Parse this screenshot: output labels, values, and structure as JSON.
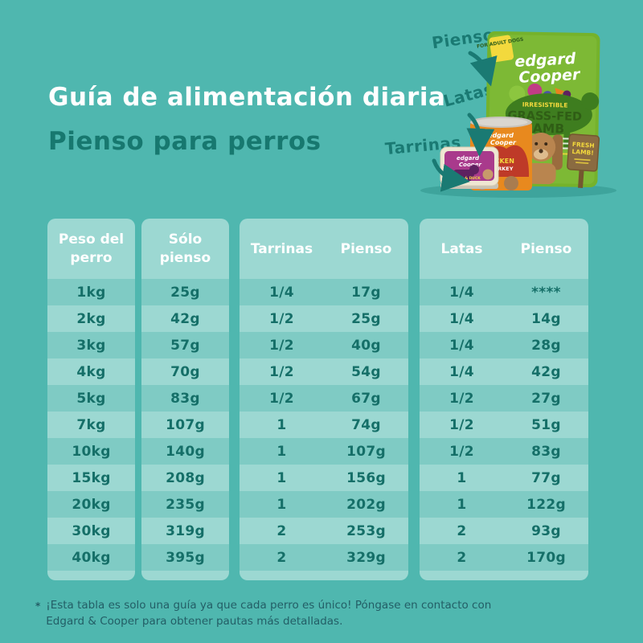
{
  "page": {
    "title": "Guía de alimentación diaria",
    "subtitle": "Pienso para perros"
  },
  "colors": {
    "background": "#4FB7AF",
    "panel": "#9CD8D2",
    "row_stripe": "#7FCBC4",
    "header_text": "#FFFFFF",
    "cell_text": "#156F68",
    "title_text": "#FFFFFF",
    "subtitle_text": "#17786F",
    "label_text": "#1A7A73",
    "bag_green": "#75B22B",
    "can_orange": "#E8891E",
    "tray_magenta": "#A93A8C",
    "footnote_text": "#235E66"
  },
  "product_labels": {
    "pienso": "Pienso",
    "latas": "Latas",
    "tarrinas": "Tarrinas"
  },
  "products": {
    "bag": {
      "brand_line1": "edgard",
      "brand_line2": "Cooper",
      "badge": "FOR ADULT DOGS",
      "tagline": "IRRESISTIBLE",
      "title_line1": "GRASS-FED",
      "title_line2": "LAMB",
      "sign_line1": "FRESH",
      "sign_line2": "LAMB!"
    },
    "can": {
      "brand_line1": "edgard",
      "brand_line2": "Cooper",
      "flavor_line1": "CHICKEN",
      "flavor_line2": "& TURKEY"
    },
    "tray": {
      "brand_line1": "edgard",
      "brand_line2": "Cooper",
      "flavor": "LAMB & DUCK"
    }
  },
  "table": {
    "headers": {
      "weight_line1": "Peso del",
      "weight_line2": "perro",
      "kibble_line1": "Sólo",
      "kibble_line2": "pienso",
      "trays": "Tarrinas",
      "trays_kibble": "Pienso",
      "cans": "Latas",
      "cans_kibble": "Pienso"
    },
    "rows": [
      {
        "weight": "1kg",
        "kibble_only": "25g",
        "trays": "1/4",
        "trays_kibble": "17g",
        "cans": "1/4",
        "cans_kibble": "****"
      },
      {
        "weight": "2kg",
        "kibble_only": "42g",
        "trays": "1/2",
        "trays_kibble": "25g",
        "cans": "1/4",
        "cans_kibble": "14g"
      },
      {
        "weight": "3kg",
        "kibble_only": "57g",
        "trays": "1/2",
        "trays_kibble": "40g",
        "cans": "1/4",
        "cans_kibble": "28g"
      },
      {
        "weight": "4kg",
        "kibble_only": "70g",
        "trays": "1/2",
        "trays_kibble": "54g",
        "cans": "1/4",
        "cans_kibble": "42g"
      },
      {
        "weight": "5kg",
        "kibble_only": "83g",
        "trays": "1/2",
        "trays_kibble": "67g",
        "cans": "1/2",
        "cans_kibble": "27g"
      },
      {
        "weight": "7kg",
        "kibble_only": "107g",
        "trays": "1",
        "trays_kibble": "74g",
        "cans": "1/2",
        "cans_kibble": "51g"
      },
      {
        "weight": "10kg",
        "kibble_only": "140g",
        "trays": "1",
        "trays_kibble": "107g",
        "cans": "1/2",
        "cans_kibble": "83g"
      },
      {
        "weight": "15kg",
        "kibble_only": "208g",
        "trays": "1",
        "trays_kibble": "156g",
        "cans": "1",
        "cans_kibble": "77g"
      },
      {
        "weight": "20kg",
        "kibble_only": "235g",
        "trays": "1",
        "trays_kibble": "202g",
        "cans": "1",
        "cans_kibble": "122g"
      },
      {
        "weight": "30kg",
        "kibble_only": "319g",
        "trays": "2",
        "trays_kibble": "253g",
        "cans": "2",
        "cans_kibble": "93g"
      },
      {
        "weight": "40kg",
        "kibble_only": "395g",
        "trays": "2",
        "trays_kibble": "329g",
        "cans": "2",
        "cans_kibble": "170g"
      }
    ]
  },
  "footnote": {
    "marker": "*",
    "text": "¡Esta tabla es solo una guía ya que cada perro es único! Póngase en contacto con Edgard & Cooper para obtener pautas más detalladas."
  }
}
